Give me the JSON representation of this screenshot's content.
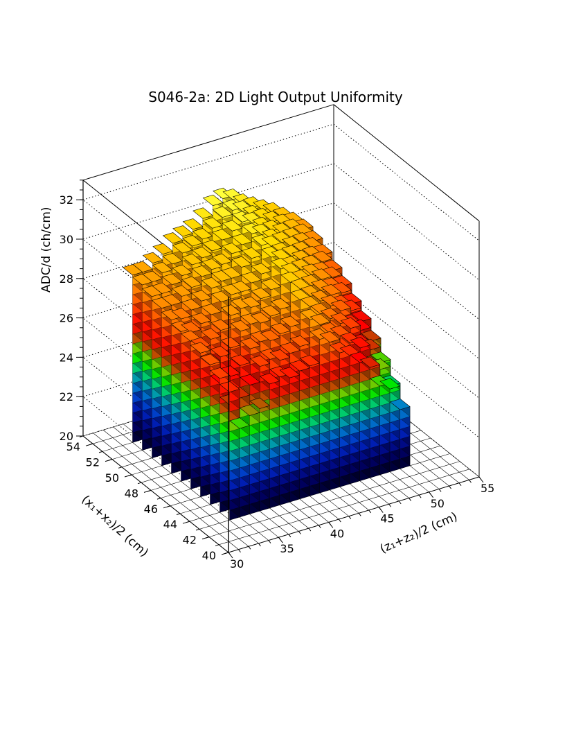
{
  "chart_data": {
    "type": "lego3d",
    "title": "S046-2a: 2D Light Output Uniformity",
    "xlabel": "(z₁+z₂)/2 (cm)",
    "ylabel": "(x₁+x₂)/2 (cm)",
    "zlabel": "ADC/d (ch/cm)",
    "xlim": [
      30,
      55
    ],
    "ylim": [
      40,
      55
    ],
    "zlim": [
      20,
      33
    ],
    "xticks": [
      30,
      35,
      40,
      45,
      50,
      55
    ],
    "yticks": [
      40,
      42,
      44,
      46,
      48,
      50,
      52,
      54
    ],
    "zticks": [
      20,
      22,
      24,
      26,
      28,
      30,
      32
    ],
    "x_bins": [
      33,
      34,
      35,
      36,
      37,
      38,
      39,
      40,
      41,
      42,
      43,
      44,
      45,
      46,
      47,
      48,
      49,
      50
    ],
    "y_bins": [
      43,
      44,
      45,
      46,
      47,
      48,
      49,
      50,
      51,
      52,
      53
    ],
    "values": [
      [
        26.5,
        24.5,
        25.0,
        25.2,
        26.3,
        26.5,
        26.3,
        26.5,
        26.6,
        27.8,
        27.5,
        26.8,
        26.5,
        26.0,
        25.6,
        24.5,
        24.2,
        23.0
      ],
      [
        26.8,
        25.3,
        25.5,
        26.0,
        26.8,
        27.0,
        26.8,
        27.0,
        27.2,
        28.4,
        28.0,
        27.4,
        27.1,
        26.6,
        26.2,
        25.1,
        24.8,
        23.8
      ],
      [
        27.1,
        26.0,
        26.2,
        26.6,
        27.3,
        27.5,
        27.4,
        27.6,
        27.8,
        29.0,
        28.5,
        28.0,
        27.6,
        27.2,
        26.8,
        25.8,
        25.4,
        24.6
      ],
      [
        27.3,
        26.6,
        26.8,
        27.1,
        27.8,
        28.0,
        27.9,
        28.1,
        28.3,
        29.5,
        29.0,
        28.5,
        28.1,
        27.7,
        27.3,
        26.4,
        26.0,
        25.3
      ],
      [
        27.5,
        27.0,
        27.3,
        27.6,
        28.2,
        28.4,
        28.3,
        28.6,
        28.9,
        29.8,
        29.4,
        28.9,
        28.5,
        28.1,
        27.7,
        27.0,
        26.6,
        25.9
      ],
      [
        27.6,
        27.4,
        27.7,
        28.0,
        28.5,
        28.7,
        28.7,
        29.0,
        29.3,
        30.0,
        29.7,
        29.2,
        28.9,
        28.5,
        28.1,
        27.5,
        27.1,
        26.4
      ],
      [
        27.8,
        27.7,
        28.0,
        28.3,
        28.8,
        29.0,
        29.0,
        29.4,
        29.7,
        30.2,
        30.0,
        29.5,
        29.2,
        28.8,
        28.4,
        27.9,
        27.5,
        26.9
      ],
      [
        28.0,
        28.0,
        28.3,
        28.6,
        29.0,
        29.2,
        29.3,
        29.7,
        30.0,
        30.4,
        30.2,
        29.8,
        29.5,
        29.1,
        28.7,
        28.3,
        27.9,
        27.3
      ],
      [
        28.2,
        28.2,
        28.5,
        28.8,
        29.2,
        29.4,
        29.6,
        30.0,
        30.3,
        30.6,
        30.4,
        30.0,
        29.7,
        29.4,
        29.0,
        28.6,
        28.2,
        27.7
      ],
      [
        28.4,
        28.4,
        28.7,
        29.0,
        29.4,
        29.6,
        29.8,
        30.2,
        30.6,
        30.8,
        30.6,
        30.2,
        29.9,
        29.6,
        29.3,
        28.9,
        28.5,
        28.0
      ],
      [
        28.5,
        28.5,
        28.8,
        29.1,
        29.5,
        29.7,
        29.9,
        30.3,
        30.8,
        31.0,
        30.8,
        30.4,
        30.1,
        29.8,
        29.5,
        29.1,
        28.7,
        28.2
      ]
    ],
    "grid": true,
    "colormap": "rainbow"
  }
}
